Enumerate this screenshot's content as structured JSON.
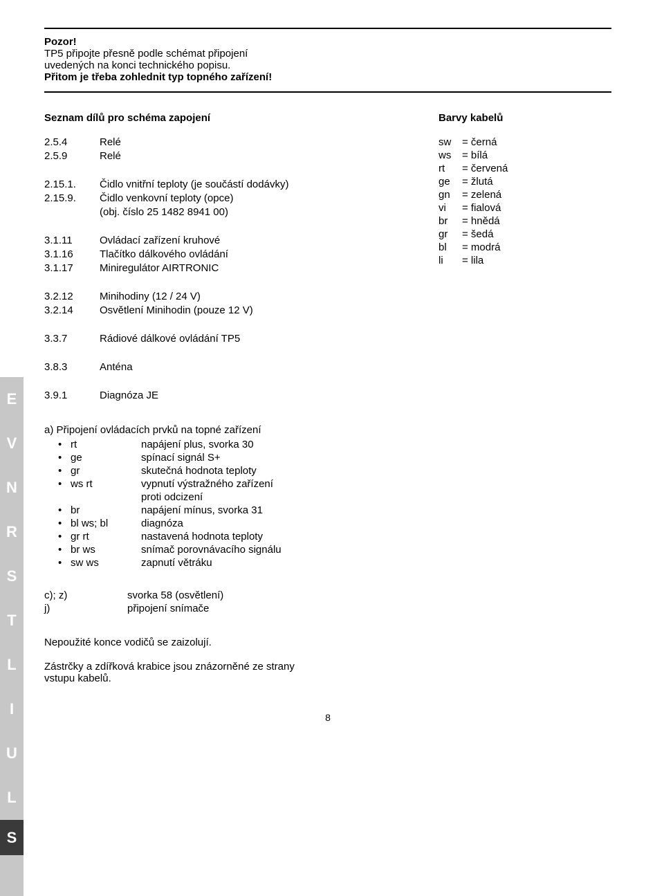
{
  "warning": {
    "title": "Pozor!",
    "line1": "TP5 připojte přesně podle schémat připojení",
    "line2": "uvedených na konci technického popisu.",
    "line3": "Přitom je třeba zohlednit typ topného zařízení!"
  },
  "parts": {
    "heading": "Seznam dílů pro schéma zapojení",
    "group1": [
      {
        "num": "2.5.4",
        "desc": "Relé"
      },
      {
        "num": "2.5.9",
        "desc": "Relé"
      }
    ],
    "group2": [
      {
        "num": "2.15.1.",
        "desc": "Čidlo vnitřní teploty (je součástí dodávky)"
      },
      {
        "num": "2.15.9.",
        "desc": "Čidlo venkovní teploty (opce)"
      },
      {
        "num": "",
        "desc": "(obj. číslo 25 1482 8941 00)"
      }
    ],
    "group3": [
      {
        "num": "3.1.11",
        "desc": "Ovládací zařízení kruhové"
      },
      {
        "num": "3.1.16",
        "desc": "Tlačítko dálkového ovládání"
      },
      {
        "num": "3.1.17",
        "desc": "Miniregulátor AIRTRONIC"
      }
    ],
    "group4": [
      {
        "num": "3.2.12",
        "desc": "Minihodiny (12 / 24 V)"
      },
      {
        "num": "3.2.14",
        "desc": "Osvětlení  Minihodin (pouze 12 V)"
      }
    ],
    "group5": [
      {
        "num": "3.3.7",
        "desc": "Rádiové dálkové ovládání TP5"
      }
    ],
    "group6": [
      {
        "num": "3.8.3",
        "desc": "Anténa"
      }
    ],
    "group7": [
      {
        "num": "3.9.1",
        "desc": "Diagnóza JE"
      }
    ]
  },
  "colors": {
    "heading": "Barvy kabelů",
    "items": [
      {
        "code": "sw",
        "name": "= černá"
      },
      {
        "code": "ws",
        "name": "= bílá"
      },
      {
        "code": "rt",
        "name": "= červená"
      },
      {
        "code": "ge",
        "name": "= žlutá"
      },
      {
        "code": "gn",
        "name": "= zelená"
      },
      {
        "code": "vi",
        "name": "= fialová"
      },
      {
        "code": "br",
        "name": "= hnědá"
      },
      {
        "code": "gr",
        "name": "= šedá"
      },
      {
        "code": "bl",
        "name": "= modrá"
      },
      {
        "code": "li",
        "name": "= lila"
      }
    ]
  },
  "connections": {
    "heading": "a) Připojení ovládacích prvků na topné zařízení",
    "items": [
      {
        "code": "rt",
        "desc": "napájení plus, svorka 30"
      },
      {
        "code": "ge",
        "desc": "spínací signál S+"
      },
      {
        "code": "gr",
        "desc": "skutečná hodnota teploty"
      },
      {
        "code": "ws rt",
        "desc": "vypnutí výstražného zařízení"
      },
      {
        "code": "",
        "desc": "proti odcizení"
      },
      {
        "code": "br",
        "desc": "napájení mínus, svorka 31"
      },
      {
        "code": "bl ws; bl",
        "desc": "diagnóza"
      },
      {
        "code": "gr rt",
        "desc": "nastavená hodnota teploty"
      },
      {
        "code": "br ws",
        "desc": "snímač porovnávacího signálu"
      },
      {
        "code": "sw ws",
        "desc": "zapnutí větráku"
      }
    ],
    "cz": [
      {
        "code": "c); z)",
        "desc": "svorka 58 (osvětlení)"
      },
      {
        "code": "j)",
        "desc": "připojení snímače"
      }
    ]
  },
  "notes": {
    "line1": "Nepoužité konce vodičů se zaizolují.",
    "line2": "Zástrčky a zdířková krabice jsou znázorněné ze strany",
    "line3": "vstupu kabelů."
  },
  "sidebar": [
    "E",
    "V",
    "N",
    "R",
    "S",
    "T",
    "L",
    "I",
    "U",
    "L",
    "S"
  ],
  "page_number": "8"
}
